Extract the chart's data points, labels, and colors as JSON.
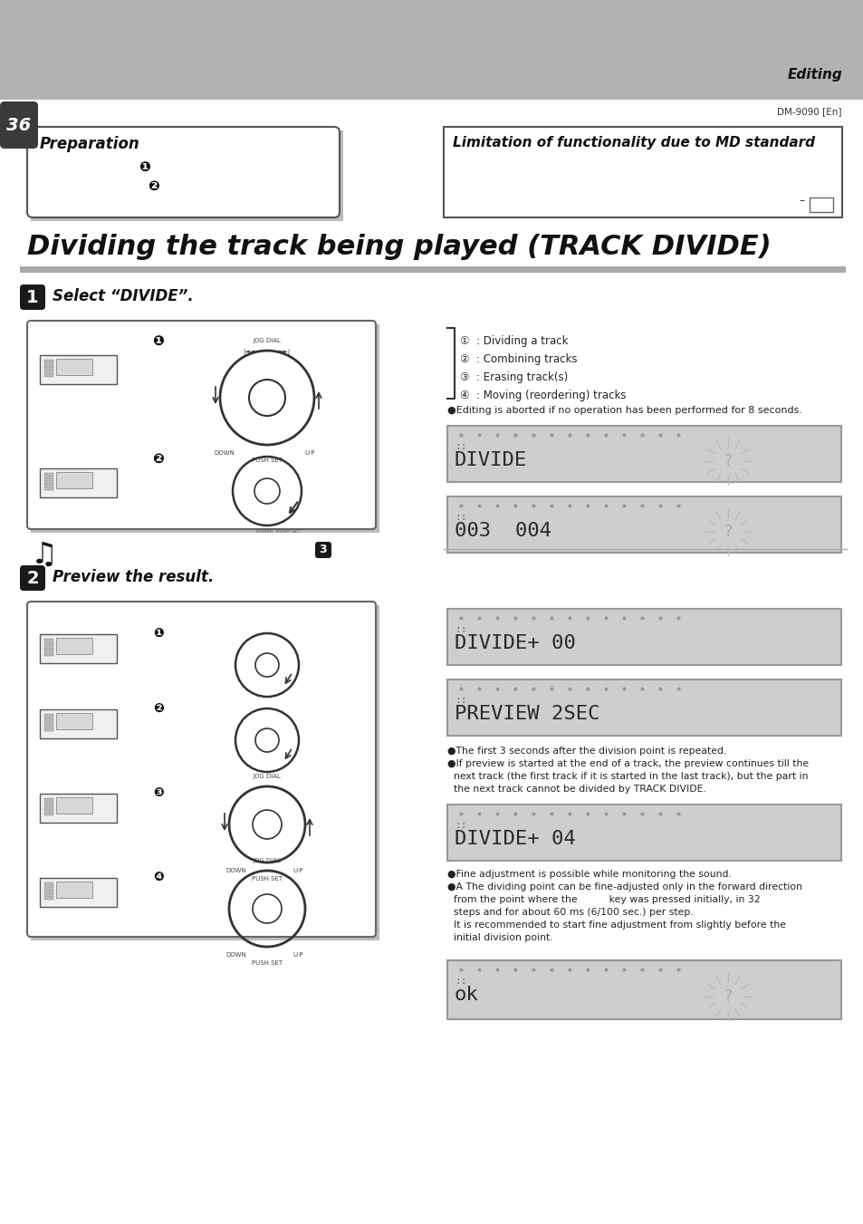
{
  "page_num": "36",
  "header_text": "Editing",
  "model": "DM-9090 [En]",
  "main_title": "Dividing the track being played (TRACK DIVIDE)",
  "step1_text": "Select “DIVIDE”.",
  "step2_text": "Preview the result.",
  "prep_title": "Preparation",
  "limit_title": "Limitation of functionality due to MD standard",
  "header_gray": "#b2b2b2",
  "page_tab_color": "#3a3a3a",
  "step_box_color": "#1a1a1a",
  "box_shadow": "#aaaaaa",
  "lcd_bg": "#cecece",
  "lcd_border": "#999999",
  "lcd_text": "#2a2a2a",
  "lcd_dot": "#999999",
  "body_text": "#1a1a1a",
  "divider_gray": "#aaaaaa",
  "bullet_texts": [
    "①  : Dividing a track",
    "②  : Combining tracks",
    "③  : Erasing track(s)",
    "④  : Moving (reordering) tracks"
  ],
  "note1": "●Editing is aborted if no operation has been performed for 8 seconds.",
  "note2": [
    "●The first 3 seconds after the division point is repeated.",
    "●If preview is started at the end of a track, the preview continues till the",
    "  next track (the first track if it is started in the last track), but the part in",
    "  the next track cannot be divided by TRACK DIVIDE."
  ],
  "note3": [
    "●Fine adjustment is possible while monitoring the sound.",
    "●A The dividing point can be fine-adjusted only in the forward direction",
    "  from the point where the          key was pressed initially, in 32",
    "  steps and for about 60 ms (6/100 sec.) per step.",
    "  It is recommended to start fine adjustment from slightly before the",
    "  initial division point."
  ]
}
